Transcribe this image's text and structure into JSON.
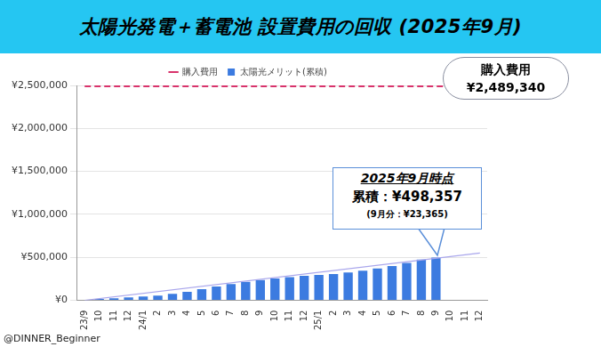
{
  "chart_data": {
    "type": "bar",
    "title": "太陽光発電＋蓄電池 設置費用の回収 (2025年9月)",
    "categories": [
      "23/9",
      "10",
      "11",
      "12",
      "24/1",
      "2",
      "3",
      "4",
      "5",
      "6",
      "7",
      "8",
      "9",
      "10",
      "11",
      "12",
      "25/1",
      "2",
      "3",
      "4",
      "5",
      "6",
      "7",
      "8",
      "9",
      "10",
      "11",
      "12"
    ],
    "series": [
      {
        "name": "太陽光メリット(累積)",
        "type": "bar",
        "color": "#3c7be0",
        "values": [
          5000,
          15000,
          25000,
          35000,
          45000,
          55000,
          75000,
          100000,
          130000,
          160000,
          190000,
          215000,
          235000,
          255000,
          270000,
          285000,
          295000,
          305000,
          325000,
          345000,
          370000,
          400000,
          435000,
          475000,
          498357,
          null,
          null,
          null
        ]
      },
      {
        "name": "購入費用",
        "type": "line",
        "color": "#d8336b",
        "line_style": "dashed",
        "values": [
          2489340,
          2489340,
          2489340,
          2489340,
          2489340,
          2489340,
          2489340,
          2489340,
          2489340,
          2489340,
          2489340,
          2489340,
          2489340,
          2489340,
          2489340,
          2489340,
          2489340,
          2489340,
          2489340,
          2489340,
          2489340,
          2489340,
          2489340,
          2489340,
          2489340,
          2489340,
          2489340,
          2489340
        ]
      },
      {
        "type": "line",
        "color": "#a9a6ec",
        "line_style": "solid",
        "values": [
          0,
          null,
          null,
          null,
          null,
          null,
          null,
          null,
          null,
          null,
          null,
          null,
          null,
          null,
          null,
          null,
          null,
          null,
          null,
          null,
          null,
          null,
          null,
          null,
          null,
          null,
          null,
          550000
        ]
      }
    ],
    "ylim": [
      0,
      2500000
    ],
    "yticks": [
      {
        "value": 0,
        "label": "¥0"
      },
      {
        "value": 500000,
        "label": "¥500,000"
      },
      {
        "value": 1000000,
        "label": "¥1,000,000"
      },
      {
        "value": 1500000,
        "label": "¥1,500,000"
      },
      {
        "value": 2000000,
        "label": "¥2,000,000"
      },
      {
        "value": 2500000,
        "label": "¥2,500,000"
      }
    ],
    "grid": true,
    "legend": "top",
    "annotations": {
      "cost": [
        "購入費用",
        "¥2,489,340"
      ],
      "callout": [
        "2025年9月時点",
        "累積：¥498,357",
        "(9月分：¥23,365)"
      ]
    },
    "credit": "@DINNER_Beginner"
  }
}
